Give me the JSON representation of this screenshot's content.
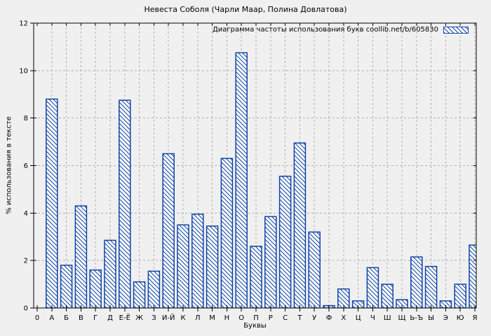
{
  "chart_data": {
    "type": "bar",
    "title": "Невеста Соболя (Чарли Маар, Полина Довлатова)",
    "legend": "Диаграмма частоты использования букв coollib.net/b/605830",
    "legend_position": "top-right-inside",
    "xlabel": "Буквы",
    "ylabel": "% использования в тексте",
    "ylim": [
      0,
      12
    ],
    "yticks": [
      0,
      2,
      4,
      6,
      8,
      10,
      12
    ],
    "grid": true,
    "origin_tick_label": "0",
    "categories": [
      "А",
      "Б",
      "В",
      "Г",
      "Д",
      "Е-Ё",
      "Ж",
      "З",
      "И-Й",
      "К",
      "Л",
      "М",
      "Н",
      "О",
      "П",
      "Р",
      "С",
      "Т",
      "У",
      "Ф",
      "Х",
      "Ц",
      "Ч",
      "Ш",
      "Щ",
      "Ь-Ъ",
      "Ы",
      "Э",
      "Ю",
      "Я"
    ],
    "values": [
      8.8,
      1.8,
      4.3,
      1.6,
      2.85,
      8.75,
      1.1,
      1.55,
      6.5,
      3.5,
      3.95,
      3.45,
      6.3,
      10.75,
      2.6,
      3.85,
      5.55,
      6.95,
      3.2,
      0.1,
      0.8,
      0.3,
      1.7,
      1.0,
      0.35,
      2.15,
      1.75,
      0.3,
      1.0,
      2.65
    ],
    "colors": {
      "bar": "#1043a5",
      "background": "#f0f0f0",
      "grid": "#b0b0b0",
      "axis": "#000000"
    }
  }
}
